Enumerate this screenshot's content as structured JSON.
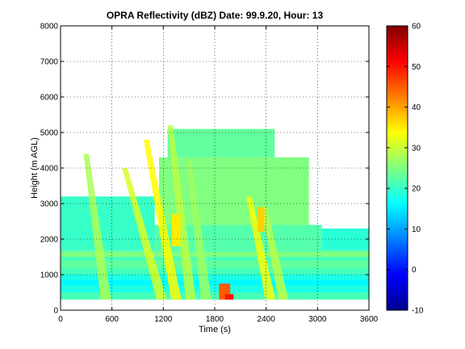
{
  "chart_data": {
    "type": "heatmap",
    "title": "OPRA Reflectivity (dBZ)  Date: 99.9.20, Hour: 13",
    "xlabel": "Time (s)",
    "ylabel": "Height (m AGL)",
    "xlim": [
      0,
      3600
    ],
    "ylim": [
      0,
      8000
    ],
    "xticks": [
      0,
      600,
      1200,
      1800,
      2400,
      3000,
      3600
    ],
    "yticks": [
      0,
      1000,
      2000,
      3000,
      4000,
      5000,
      6000,
      7000,
      8000
    ],
    "grid": "dotted",
    "colorbar": {
      "colormap": "jet",
      "range": [
        -10,
        60
      ],
      "ticks": [
        -10,
        0,
        10,
        20,
        30,
        40,
        50,
        60
      ]
    },
    "layers": [
      {
        "x": [
          0,
          3600
        ],
        "y": [
          300,
          1700
        ],
        "value": 21
      },
      {
        "x": [
          0,
          3600
        ],
        "y": [
          500,
          1000
        ],
        "value": 18
      },
      {
        "x": [
          0,
          3600
        ],
        "y": [
          700,
          850
        ],
        "value": 16
      },
      {
        "x": [
          0,
          3600
        ],
        "y": [
          1200,
          1400
        ],
        "value": 23
      },
      {
        "x": [
          0,
          3600
        ],
        "y": [
          1500,
          1650
        ],
        "value": 25
      },
      {
        "x": [
          1100,
          3050
        ],
        "y": [
          1700,
          2400
        ],
        "value": 22
      },
      {
        "x": [
          1150,
          2900
        ],
        "y": [
          2400,
          4300
        ],
        "value": 25
      },
      {
        "x": [
          1250,
          2500
        ],
        "y": [
          4300,
          5100
        ],
        "value": 23
      },
      {
        "x": [
          0,
          1100
        ],
        "y": [
          1700,
          3200
        ],
        "value": 20
      },
      {
        "x": [
          3050,
          3600
        ],
        "y": [
          1700,
          2300
        ],
        "value": 19
      }
    ],
    "streaks": [
      {
        "x_top": 300,
        "y_top": 4400,
        "x_bottom": 530,
        "y_bottom": 300,
        "value": 28
      },
      {
        "x_top": 750,
        "y_top": 4000,
        "x_bottom": 1180,
        "y_bottom": 300,
        "value": 31
      },
      {
        "x_top": 1000,
        "y_top": 4800,
        "x_bottom": 1350,
        "y_bottom": 300,
        "value": 34
      },
      {
        "x_top": 1280,
        "y_top": 5200,
        "x_bottom": 1520,
        "y_bottom": 300,
        "value": 29
      },
      {
        "x_top": 1500,
        "y_top": 4200,
        "x_bottom": 1700,
        "y_bottom": 300,
        "value": 27
      },
      {
        "x_top": 2200,
        "y_top": 3200,
        "x_bottom": 2450,
        "y_bottom": 300,
        "value": 33
      },
      {
        "x_top": 2380,
        "y_top": 2900,
        "x_bottom": 2600,
        "y_bottom": 300,
        "value": 29
      }
    ],
    "cores": [
      {
        "x": [
          1300,
          1400
        ],
        "y": [
          1800,
          2700
        ],
        "value": 35
      },
      {
        "x": [
          1850,
          1980
        ],
        "y": [
          300,
          750
        ],
        "value": 45
      },
      {
        "x": [
          1920,
          2020
        ],
        "y": [
          300,
          450
        ],
        "value": 50
      },
      {
        "x": [
          2300,
          2380
        ],
        "y": [
          2200,
          2900
        ],
        "value": 37
      }
    ]
  }
}
